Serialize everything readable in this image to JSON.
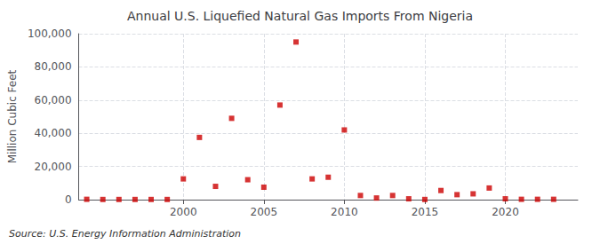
{
  "chart_data": {
    "type": "scatter",
    "title": "Annual U.S. Liquefied Natural Gas Imports From Nigeria",
    "ylabel": "Million Cubic Feet",
    "source": "Source: U.S. Energy Information Administration",
    "x": [
      1994,
      1995,
      1996,
      1997,
      1998,
      1999,
      2000,
      2001,
      2002,
      2003,
      2004,
      2005,
      2006,
      2007,
      2008,
      2009,
      2010,
      2011,
      2012,
      2013,
      2014,
      2015,
      2016,
      2017,
      2018,
      2019,
      2020,
      2021,
      2022,
      2023
    ],
    "values": [
      200,
      100,
      100,
      100,
      100,
      100,
      12500,
      37500,
      8000,
      49000,
      12000,
      7500,
      57000,
      95000,
      12500,
      13500,
      42000,
      2500,
      1000,
      2500,
      500,
      100,
      5500,
      3000,
      3500,
      7000,
      500,
      200,
      200,
      200
    ],
    "color": "#cc0000",
    "marker": "square",
    "xlim": [
      1993.5,
      2024.5
    ],
    "xticks": [
      2000,
      2005,
      2010,
      2015,
      2020
    ],
    "ylim": [
      0,
      100000
    ],
    "yticks": [
      0,
      {
        "value": 20000,
        "label": "20,000"
      },
      {
        "value": 40000,
        "label": "40,000"
      },
      {
        "value": 60000,
        "label": "60,000"
      },
      {
        "value": 80000,
        "label": "80,000"
      },
      {
        "value": 100000,
        "label": "100,000"
      }
    ],
    "grid": true
  }
}
